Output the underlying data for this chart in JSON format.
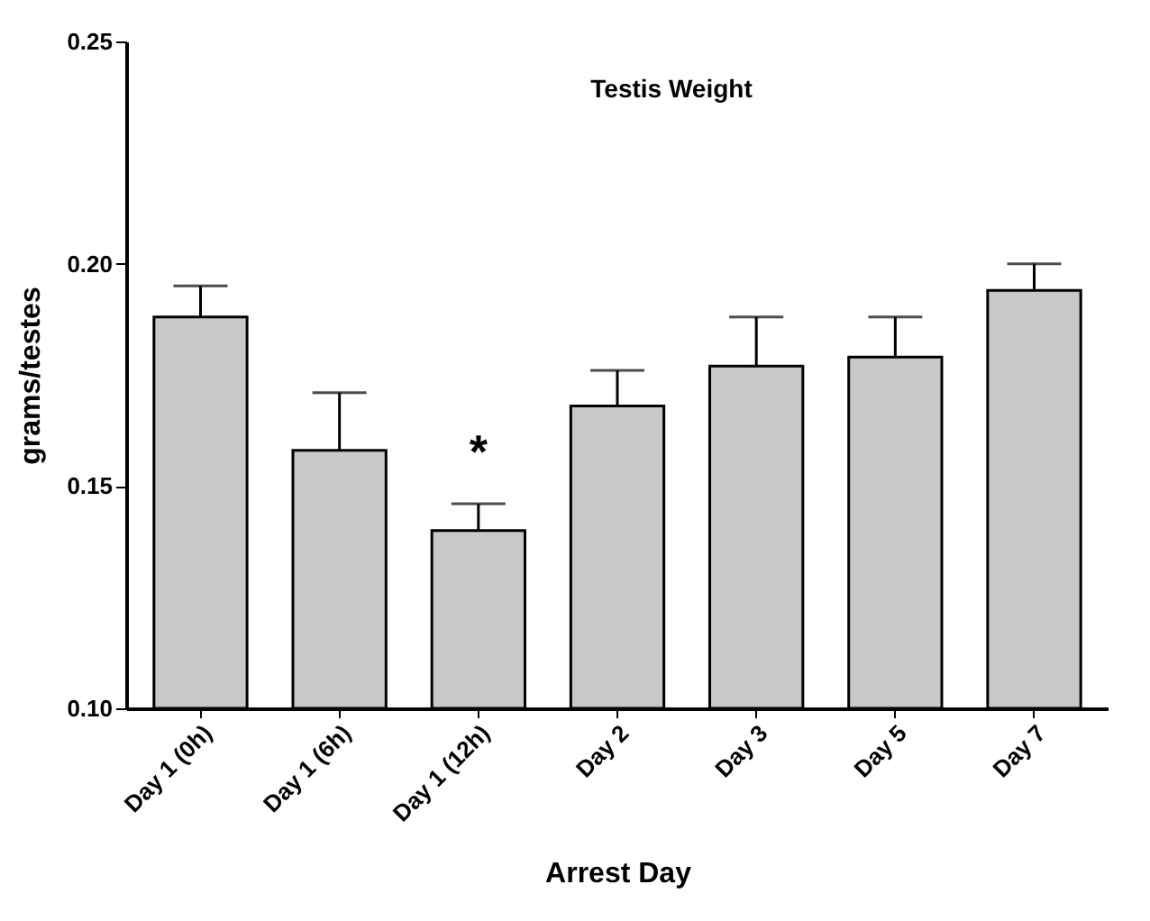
{
  "chart_data": {
    "type": "bar",
    "title": "Testis Weight",
    "xlabel": "Arrest Day",
    "ylabel": "grams/testes",
    "categories": [
      "Day 1 (0h)",
      "Day 1 (6h)",
      "Day 1 (12h)",
      "Day 2",
      "Day 3",
      "Day 5",
      "Day 7"
    ],
    "values": [
      0.188,
      0.158,
      0.14,
      0.168,
      0.177,
      0.179,
      0.194
    ],
    "errors": [
      [
        0.188,
        0.195
      ],
      [
        0.158,
        0.171
      ],
      [
        0.14,
        0.146
      ],
      [
        0.168,
        0.176
      ],
      [
        0.177,
        0.188
      ],
      [
        0.179,
        0.188
      ],
      [
        0.194,
        0.2
      ]
    ],
    "color": "#c8c8c8",
    "ylim": [
      0.1,
      0.25
    ],
    "yticks": [
      {
        "value": 0.1,
        "label": "0.10"
      },
      {
        "value": 0.15,
        "label": "0.15"
      },
      {
        "value": 0.2,
        "label": "0.20"
      },
      {
        "value": 0.25,
        "label": "0.25"
      }
    ],
    "annotations": [
      {
        "text": "*",
        "x": "Day 1 (12h)",
        "y": 0.146
      }
    ],
    "grid": false
  }
}
